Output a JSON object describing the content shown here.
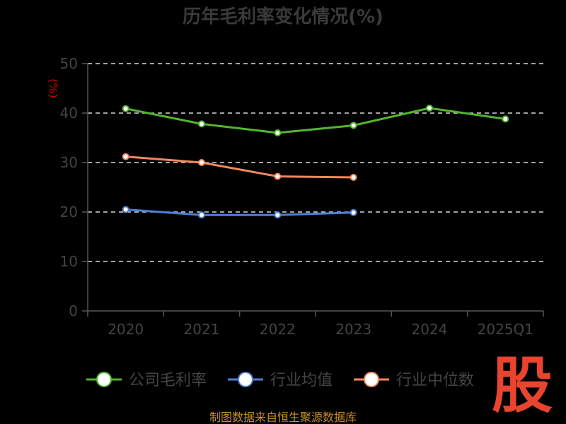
{
  "chart_data": {
    "type": "line",
    "title": "历年毛利率变化情况(%)",
    "ylabel": "(%)",
    "xlabel": "",
    "categories": [
      "2020",
      "2021",
      "2022",
      "2023",
      "2024",
      "2025Q1"
    ],
    "ylim": [
      0,
      50
    ],
    "yticks": [
      "0",
      "10",
      "20",
      "30",
      "40",
      "50"
    ],
    "grid": true,
    "legend_position": "bottom",
    "series": [
      {
        "name": "公司毛利率",
        "color": "#52b52e",
        "values": [
          40.9,
          37.8,
          36.0,
          37.5,
          41.0,
          38.8
        ]
      },
      {
        "name": "行业均值",
        "color": "#4f7fd6",
        "values": [
          20.5,
          19.4,
          19.4,
          19.9,
          null,
          null
        ]
      },
      {
        "name": "行业中位数",
        "color": "#f2885a",
        "values": [
          31.2,
          30.0,
          27.2,
          27.0,
          null,
          null
        ]
      }
    ]
  },
  "source_text": "制图数据来自恒生聚源数据库",
  "watermark": {
    "text": "股",
    "color": "#e8442e"
  }
}
